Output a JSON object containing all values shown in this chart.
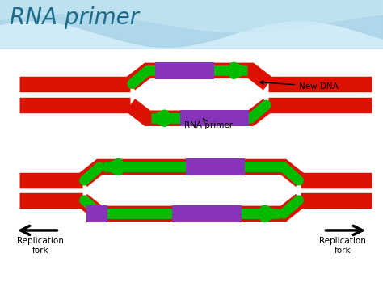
{
  "title": "RNA primer",
  "title_color": "#1a6b8a",
  "title_fontsize": 20,
  "red_color": "#dd1100",
  "green_color": "#00bb00",
  "purple_color": "#8833bb",
  "black_color": "#111111",
  "label_new_dna": "New DNA",
  "label_rna_primer": "RNA primer",
  "label_rep_fork": "Replication\nfork",
  "figsize": [
    4.74,
    3.55
  ],
  "dpi": 100,
  "wave_color1": "#aad4e8",
  "wave_color2": "#c8e8f4",
  "title_bg_color": "#d0eaf8"
}
